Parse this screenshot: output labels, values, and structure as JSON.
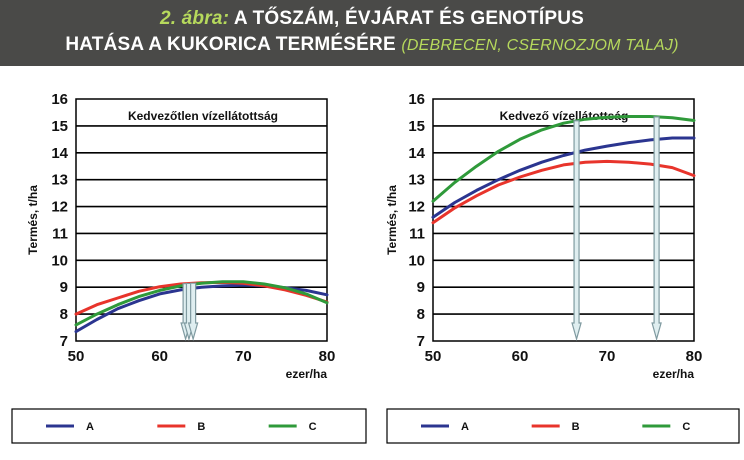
{
  "header": {
    "figure_label": "2. ábra:",
    "title_line1": "A TŐSZÁM, ÉVJÁRAT ÉS GENOTÍPUS",
    "title_line2": "HATÁSA A KUKORICA TERMÉSÉRE",
    "title_suffix": "(DEBRECEN, CSERNOZJOM TALAJ)"
  },
  "colors": {
    "A": "#2b3590",
    "B": "#e8342b",
    "C": "#2f9a3a",
    "header_bg": "#4a4a48",
    "accent": "#b6d95c"
  },
  "chart_data": [
    {
      "type": "line",
      "title": "Kedvezőtlen vízellátottság",
      "ylabel": "Termés, t/ha",
      "xlabel": "ezer/ha",
      "x_ticks": [
        "50",
        "60",
        "70",
        "80"
      ],
      "y_ticks": [
        "7",
        "8",
        "9",
        "10",
        "11",
        "12",
        "13",
        "14",
        "15",
        "16"
      ],
      "xlim": [
        50,
        80
      ],
      "ylim": [
        7,
        16
      ],
      "grid": "horizontal",
      "x": [
        50,
        52.5,
        55,
        57.5,
        60,
        62.5,
        65,
        67.5,
        70,
        72.5,
        75,
        77.5,
        80
      ],
      "series": [
        {
          "name": "A",
          "values": [
            7.35,
            7.8,
            8.2,
            8.5,
            8.75,
            8.9,
            9.0,
            9.05,
            9.08,
            9.05,
            8.98,
            8.88,
            8.72
          ]
        },
        {
          "name": "B",
          "values": [
            8.0,
            8.35,
            8.6,
            8.85,
            9.02,
            9.12,
            9.17,
            9.18,
            9.15,
            9.05,
            8.9,
            8.7,
            8.45
          ]
        },
        {
          "name": "C",
          "values": [
            7.6,
            8.0,
            8.35,
            8.65,
            8.88,
            9.05,
            9.15,
            9.2,
            9.2,
            9.12,
            8.98,
            8.75,
            8.42
          ]
        }
      ],
      "optimum_arrows_x": [
        63.1,
        63.5,
        64.0
      ],
      "legend": [
        "A",
        "B",
        "C"
      ],
      "legend_placement": "bottom"
    },
    {
      "type": "line",
      "title": "Kedvező vízellátottság",
      "ylabel": "Termés, t/ha",
      "xlabel": "ezer/ha",
      "x_ticks": [
        "50",
        "60",
        "70",
        "80"
      ],
      "y_ticks": [
        "7",
        "8",
        "9",
        "10",
        "11",
        "12",
        "13",
        "14",
        "15",
        "16"
      ],
      "xlim": [
        50,
        80
      ],
      "ylim": [
        7,
        16
      ],
      "grid": "horizontal",
      "x": [
        50,
        52.5,
        55,
        57.5,
        60,
        62.5,
        65,
        67.5,
        70,
        72.5,
        75,
        77.5,
        80
      ],
      "series": [
        {
          "name": "A",
          "values": [
            11.6,
            12.15,
            12.6,
            13.0,
            13.35,
            13.65,
            13.9,
            14.1,
            14.25,
            14.38,
            14.48,
            14.55,
            14.55
          ]
        },
        {
          "name": "B",
          "values": [
            11.4,
            11.95,
            12.4,
            12.8,
            13.1,
            13.35,
            13.55,
            13.65,
            13.68,
            13.65,
            13.58,
            13.45,
            13.15
          ]
        },
        {
          "name": "C",
          "values": [
            12.2,
            12.9,
            13.5,
            14.05,
            14.5,
            14.85,
            15.1,
            15.25,
            15.32,
            15.35,
            15.35,
            15.3,
            15.2
          ]
        }
      ],
      "optimum_arrows_x": [
        66.5,
        75.7
      ],
      "legend": [
        "A",
        "B",
        "C"
      ],
      "legend_placement": "bottom"
    }
  ]
}
